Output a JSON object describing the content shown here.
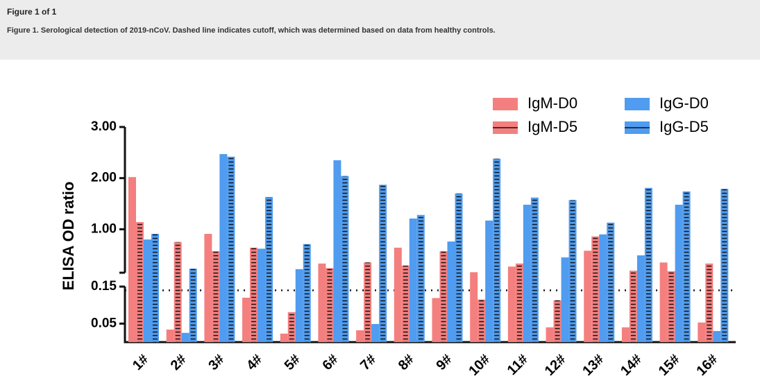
{
  "header": {
    "title": "Figure 1 of 1",
    "caption": "Figure 1. Serological detection of 2019-nCoV. Dashed line indicates cutoff, which was determined based on data from healthy controls."
  },
  "chart_data": {
    "type": "bar",
    "ylabel": "ELISA OD ratio",
    "categories": [
      "1#",
      "2#",
      "3#",
      "4#",
      "5#",
      "6#",
      "7#",
      "8#",
      "9#",
      "10#",
      "11#",
      "12#",
      "13#",
      "14#",
      "15#",
      "16#"
    ],
    "series": [
      {
        "name": "IgM-D0",
        "color": "#f47f7f",
        "hatch": false,
        "values": [
          2.02,
          0.034,
          0.91,
          0.12,
          0.023,
          0.33,
          0.032,
          0.64,
          0.119,
          0.16,
          0.27,
          0.04,
          0.58,
          0.04,
          0.35,
          0.053
        ]
      },
      {
        "name": "IgM-D5",
        "color": "#f47f7f",
        "hatch": true,
        "values": [
          1.14,
          0.75,
          0.57,
          0.64,
          0.081,
          0.24,
          0.35,
          0.29,
          0.57,
          0.115,
          0.33,
          0.113,
          0.86,
          0.19,
          0.18,
          0.33
        ]
      },
      {
        "name": "IgG-D0",
        "color": "#4f9cf0",
        "hatch": false,
        "values": [
          0.8,
          0.025,
          2.47,
          0.62,
          0.22,
          2.35,
          0.049,
          1.21,
          0.76,
          1.17,
          1.48,
          0.45,
          0.9,
          0.49,
          1.48,
          0.03
        ]
      },
      {
        "name": "IgG-D5",
        "color": "#4f9cf0",
        "hatch": true,
        "values": [
          0.91,
          0.23,
          2.42,
          1.63,
          0.71,
          2.04,
          1.87,
          1.28,
          1.7,
          2.38,
          1.62,
          1.57,
          1.13,
          1.81,
          1.74,
          1.79
        ]
      }
    ],
    "ylim_segments": [
      [
        0,
        0.15
      ],
      [
        0.15,
        3.0
      ]
    ],
    "yticks": [
      0.05,
      0.15,
      {
        "value": 1,
        "label": "1.00"
      },
      {
        "value": 2,
        "label": "2.00"
      },
      {
        "value": 3,
        "label": "3.00"
      }
    ],
    "cutoff": 0.14
  }
}
